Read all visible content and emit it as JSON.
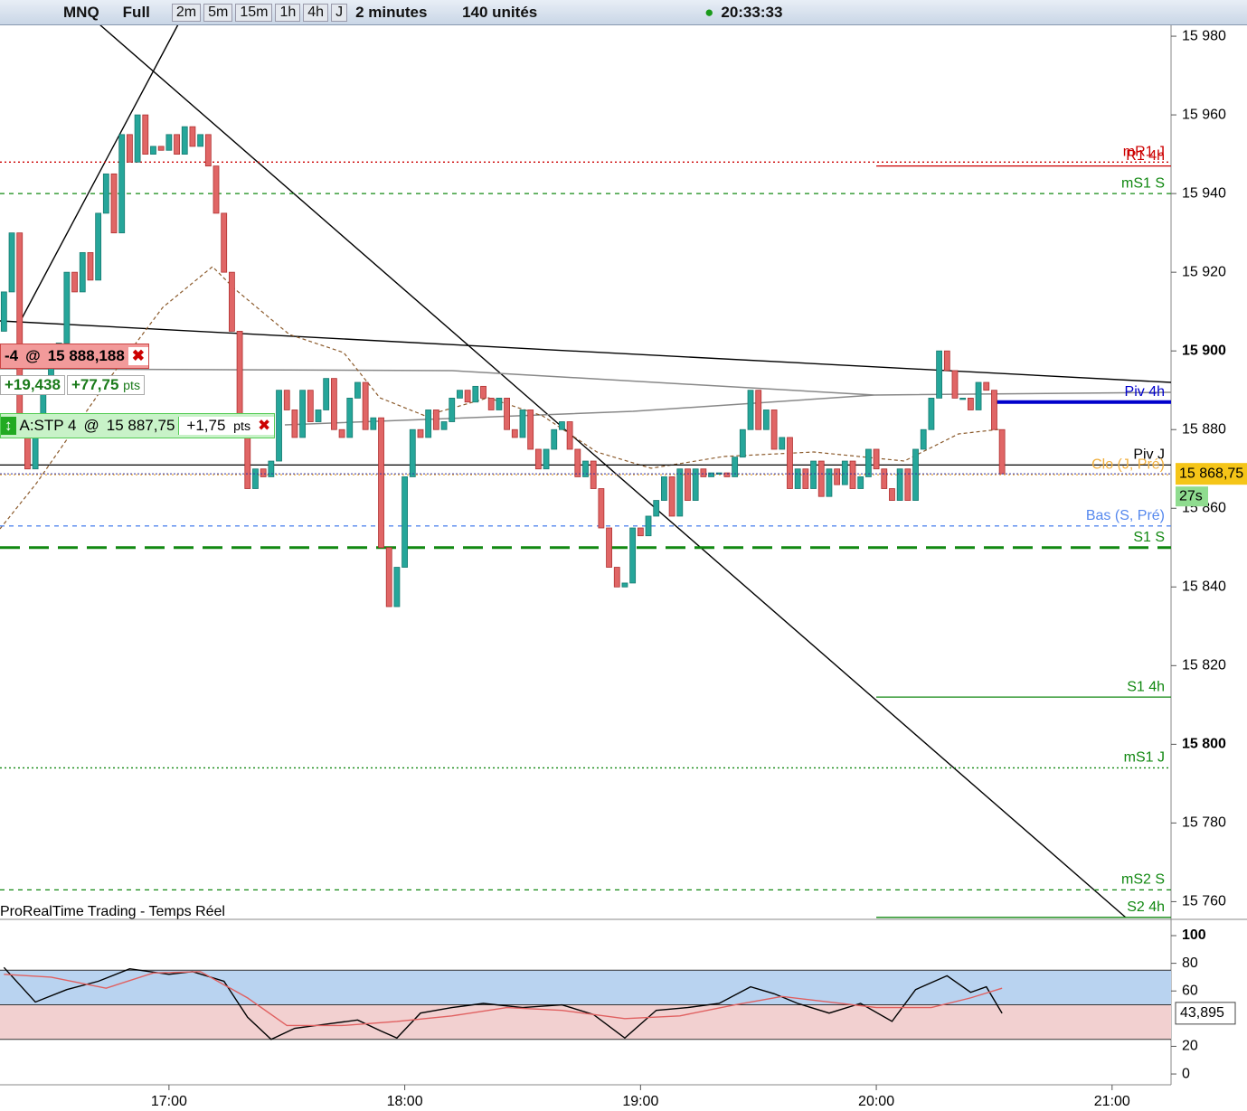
{
  "toolbar": {
    "symbol": "MNQ",
    "view": "Full",
    "periods": [
      "2m",
      "5m",
      "15m",
      "1h",
      "4h",
      "J"
    ],
    "interval": "2 minutes",
    "units": "140 unités",
    "clock": "20:33:33"
  },
  "orders": {
    "position": {
      "qty": "-4",
      "at": "@",
      "price": "15 888,188",
      "gain": "+19,438",
      "points": "+77,75",
      "unit": "pts"
    },
    "stop": {
      "name": "A:STP 4",
      "at": "@",
      "price": "15 887,75",
      "points": "+1,75",
      "unit": "pts"
    }
  },
  "watermark": "ProRealTime Trading - Temps Réel",
  "chart_data": {
    "type": "candlestick",
    "x": [
      "16:18",
      "16:20",
      "16:22",
      "16:24",
      "16:26",
      "16:28",
      "16:30",
      "16:32",
      "16:34",
      "16:36",
      "16:38",
      "16:40",
      "16:42",
      "16:44",
      "16:46",
      "16:48",
      "16:50",
      "16:52",
      "16:54",
      "16:56",
      "16:58",
      "17:00",
      "17:02",
      "17:04",
      "17:06",
      "17:08",
      "17:10",
      "17:12",
      "17:14",
      "17:16",
      "17:18",
      "17:20",
      "17:22",
      "17:24",
      "17:26",
      "17:28",
      "17:30",
      "17:32",
      "17:34",
      "17:36",
      "17:38",
      "17:40",
      "17:42",
      "17:44",
      "17:46",
      "17:48",
      "17:50",
      "17:52",
      "17:54",
      "17:56",
      "17:58",
      "18:00",
      "18:02",
      "18:04",
      "18:06",
      "18:08",
      "18:10",
      "18:12",
      "18:14",
      "18:16",
      "18:18",
      "18:20",
      "18:22",
      "18:24",
      "18:26",
      "18:28",
      "18:30",
      "18:32",
      "18:34",
      "18:36",
      "18:38",
      "18:40",
      "18:42",
      "18:44",
      "18:46",
      "18:48",
      "18:50",
      "18:52",
      "18:54",
      "18:56",
      "18:58",
      "19:00",
      "19:02",
      "19:04",
      "19:06",
      "19:08",
      "19:10",
      "19:12",
      "19:14",
      "19:16",
      "19:18",
      "19:20",
      "19:22",
      "19:24",
      "19:26",
      "19:28",
      "19:30",
      "19:32",
      "19:34",
      "19:36",
      "19:38",
      "19:40",
      "19:42",
      "19:44",
      "19:46",
      "19:48",
      "19:50",
      "19:52",
      "19:54",
      "19:56",
      "19:58",
      "20:00",
      "20:02",
      "20:04",
      "20:06",
      "20:08",
      "20:10",
      "20:12",
      "20:14",
      "20:16",
      "20:18",
      "20:20",
      "20:22",
      "20:24",
      "20:26",
      "20:28",
      "20:30",
      "20:32"
    ],
    "open": [
      15905,
      15915,
      15930,
      15880,
      15870,
      15878,
      15890,
      15898,
      15902,
      15920,
      15915,
      15925,
      15918,
      15935,
      15945,
      15930,
      15955,
      15948,
      15960,
      15950,
      15952,
      15951,
      15955,
      15950,
      15957,
      15952,
      15955,
      15947,
      15935,
      15920,
      15905,
      15880,
      15865,
      15870,
      15868,
      15872,
      15890,
      15885,
      15878,
      15890,
      15882,
      15885,
      15893,
      15880,
      15878,
      15888,
      15892,
      15880,
      15883,
      15850,
      15835,
      15845,
      15868,
      15880,
      15878,
      15885,
      15880,
      15882,
      15888,
      15890,
      15887,
      15891,
      15888,
      15885,
      15888,
      15880,
      15878,
      15885,
      15875,
      15870,
      15875,
      15880,
      15882,
      15875,
      15868,
      15872,
      15865,
      15855,
      15845,
      15840,
      15841,
      15855,
      15853,
      15858,
      15862,
      15868,
      15858,
      15870,
      15862,
      15870,
      15868,
      15869,
      15869,
      15868,
      15873,
      15880,
      15890,
      15880,
      15885,
      15875,
      15878,
      15865,
      15870,
      15865,
      15872,
      15863,
      15870,
      15866,
      15872,
      15865,
      15868,
      15875,
      15870,
      15865,
      15862,
      15870,
      15862,
      15875,
      15880,
      15888,
      15900,
      15895,
      15888,
      15888,
      15885,
      15892,
      15890,
      15880
    ],
    "close": [
      15915,
      15930,
      15880,
      15870,
      15878,
      15890,
      15898,
      15902,
      15920,
      15915,
      15925,
      15918,
      15935,
      15945,
      15930,
      15955,
      15948,
      15960,
      15950,
      15952,
      15951,
      15955,
      15950,
      15957,
      15952,
      15955,
      15947,
      15935,
      15920,
      15905,
      15880,
      15865,
      15870,
      15868,
      15872,
      15890,
      15885,
      15878,
      15890,
      15882,
      15885,
      15893,
      15880,
      15878,
      15888,
      15892,
      15880,
      15883,
      15850,
      15835,
      15845,
      15868,
      15880,
      15878,
      15885,
      15880,
      15882,
      15888,
      15890,
      15887,
      15891,
      15888,
      15885,
      15888,
      15880,
      15878,
      15885,
      15875,
      15870,
      15875,
      15880,
      15882,
      15875,
      15868,
      15872,
      15865,
      15855,
      15845,
      15840,
      15841,
      15855,
      15853,
      15858,
      15862,
      15868,
      15858,
      15870,
      15862,
      15870,
      15868,
      15869,
      15869,
      15868,
      15873,
      15880,
      15890,
      15880,
      15885,
      15875,
      15878,
      15865,
      15870,
      15865,
      15872,
      15863,
      15870,
      15866,
      15872,
      15865,
      15868,
      15875,
      15870,
      15865,
      15862,
      15870,
      15862,
      15875,
      15880,
      15888,
      15900,
      15895,
      15888,
      15888,
      15885,
      15892,
      15890,
      15880,
      15868.75
    ],
    "colors": {
      "up": "#26a69a",
      "down": "#e06666"
    },
    "xlim": [
      "16:17",
      "21:15"
    ],
    "xticks": [
      "17:00",
      "18:00",
      "19:00",
      "20:00",
      "21:00"
    ],
    "ylim": [
      15755.5,
      15983
    ],
    "yticks": [
      {
        "value": 15980,
        "label": "15 980"
      },
      {
        "value": 15960,
        "label": "15 960"
      },
      {
        "value": 15940,
        "label": "15 940"
      },
      {
        "value": 15920,
        "label": "15 920"
      },
      {
        "value": 15900,
        "label": "15 900"
      },
      {
        "value": 15880,
        "label": "15 880"
      },
      {
        "value": 15860,
        "label": "15 860"
      },
      {
        "value": 15840,
        "label": "15 840"
      },
      {
        "value": 15820,
        "label": "15 820"
      },
      {
        "value": 15800,
        "label": "15 800"
      },
      {
        "value": 15780,
        "label": "15 780"
      },
      {
        "value": 15760,
        "label": "15 760"
      }
    ],
    "levels": [
      {
        "label": "mR1 J",
        "value": 15948,
        "color": "#cc0000",
        "style": "dotted"
      },
      {
        "label": "R1 4h",
        "value": 15947,
        "color": "#cc0000",
        "style": "solid",
        "start": "20:00"
      },
      {
        "label": "mS1 S",
        "value": 15940,
        "color": "#118811",
        "style": "dashed"
      },
      {
        "label": "Piv 4h",
        "value": 15887,
        "color": "#0000cc",
        "style": "thick",
        "start": "20:30"
      },
      {
        "label": "Piv J",
        "value": 15871,
        "color": "#000000",
        "style": "solid"
      },
      {
        "label": "Clo (J, Pré)",
        "value": 15868.5,
        "color": "#f0b040",
        "style": "dotted"
      },
      {
        "label": "Bas (S, Pré)",
        "value": 15855.5,
        "color": "#5588ee",
        "style": "dashed"
      },
      {
        "label": "S1 S",
        "value": 15850,
        "color": "#118811",
        "style": "longdash"
      },
      {
        "label": "S1 4h",
        "value": 15812,
        "color": "#118811",
        "style": "solid",
        "start": "20:00"
      },
      {
        "label": "mS1 J",
        "value": 15794,
        "color": "#118811",
        "style": "dotted"
      },
      {
        "label": "mS2 S",
        "value": 15763,
        "color": "#118811",
        "style": "dashed"
      },
      {
        "label": "S2 4h",
        "value": 15756,
        "color": "#118811",
        "style": "solid",
        "start": "20:00"
      }
    ],
    "last": {
      "value": 15868.75,
      "label": "15 868,75"
    },
    "countdown": "27s"
  },
  "indicator": {
    "type": "line",
    "ylim": [
      -7.8,
      111.1
    ],
    "yticks": [
      0,
      20,
      60,
      80,
      100
    ],
    "bands": [
      25,
      50,
      75
    ],
    "series": [
      {
        "color": "#000000",
        "x": [
          "16:18",
          "16:26",
          "16:34",
          "16:42",
          "16:50",
          "17:00",
          "17:06",
          "17:14",
          "17:20",
          "17:26",
          "17:32",
          "17:40",
          "17:48",
          "17:54",
          "17:58",
          "18:04",
          "18:12",
          "18:20",
          "18:30",
          "18:40",
          "18:48",
          "18:56",
          "19:04",
          "19:12",
          "19:20",
          "19:28",
          "19:34",
          "19:40",
          "19:48",
          "19:56",
          "20:04",
          "20:10",
          "20:18",
          "20:24",
          "20:28",
          "20:32"
        ],
        "values": [
          77,
          52,
          61,
          67,
          76,
          72,
          74,
          67,
          41,
          25,
          33,
          36,
          39,
          31,
          26,
          44,
          48,
          51,
          48,
          50,
          43,
          26,
          46,
          48,
          51,
          63,
          58,
          51,
          44,
          51,
          38,
          61,
          71,
          59,
          63,
          43.895
        ]
      },
      {
        "color": "#e06060",
        "x": [
          "16:18",
          "16:30",
          "16:44",
          "16:56",
          "17:08",
          "17:20",
          "17:30",
          "17:44",
          "17:58",
          "18:12",
          "18:26",
          "18:40",
          "18:56",
          "19:10",
          "19:24",
          "19:36",
          "19:48",
          "20:00",
          "20:14",
          "20:24",
          "20:32"
        ],
        "values": [
          72,
          70,
          62,
          73,
          74,
          55,
          35,
          35,
          38,
          42,
          48,
          46,
          40,
          42,
          50,
          56,
          52,
          48,
          48,
          55,
          62
        ]
      }
    ],
    "last": {
      "value": 43.895,
      "label": "43,895"
    }
  }
}
